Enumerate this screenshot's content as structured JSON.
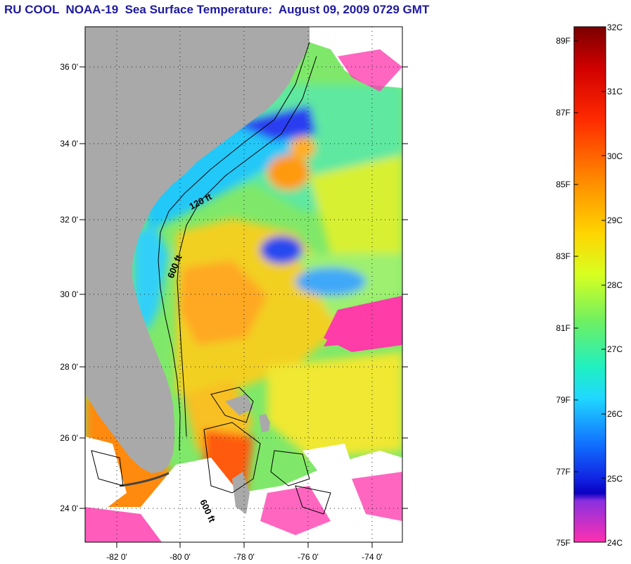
{
  "title": "RU COOL  NOAA-19  Sea Surface Temperature:  August 09, 2009 0729 GMT",
  "map": {
    "lat_labels": [
      "36 0'",
      "34 0'",
      "32 0'",
      "30 0'",
      "28 0'",
      "26 0'",
      "24 0'"
    ],
    "lon_labels": [
      "-82 0'",
      "-80 0'",
      "-78 0'",
      "-76 0'",
      "-74 0'"
    ],
    "contours": [
      "120 ft",
      "600 ft",
      "600 ft"
    ],
    "colors": {
      "land": "#a9a9a9",
      "cloud": "#ffffff",
      "cold_pink": "#ff3ca8",
      "blue": "#1a50ff",
      "cyan": "#20d8ff",
      "green": "#60f060",
      "yellow": "#f8f020",
      "orange": "#ff9418",
      "red_orange": "#ff5a10",
      "deep_red": "#c01010"
    }
  },
  "colorbar": {
    "fahrenheit_labels": [
      "89F",
      "87F",
      "85F",
      "83F",
      "81F",
      "79F",
      "77F",
      "75F"
    ],
    "celsius_labels": [
      "32C",
      "31C",
      "30C",
      "29C",
      "28C",
      "27C",
      "26C",
      "25C",
      "24C"
    ]
  }
}
